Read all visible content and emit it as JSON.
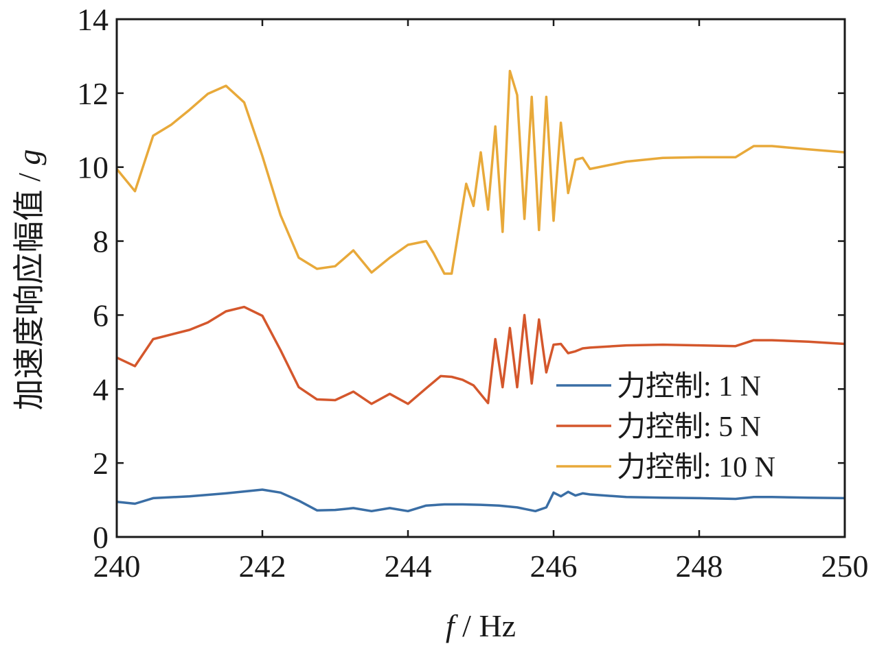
{
  "chart_data": {
    "type": "line",
    "xlabel": {
      "var": "f",
      "rest": " / Hz"
    },
    "ylabel": {
      "text": "加速度响应幅值 / ",
      "unit": "g"
    },
    "xlim": [
      240,
      250
    ],
    "ylim": [
      0,
      14
    ],
    "xticks": [
      240,
      242,
      244,
      246,
      248,
      250
    ],
    "yticks": [
      0,
      2,
      4,
      6,
      8,
      10,
      12,
      14
    ],
    "grid": false,
    "legend_position": "bottom-right",
    "series": [
      {
        "name": "力控制: 1 N",
        "color": "#3a6ea5",
        "x": [
          240,
          240.25,
          240.5,
          241,
          241.5,
          242,
          242.25,
          242.5,
          242.75,
          243,
          243.25,
          243.5,
          243.75,
          244,
          244.25,
          244.5,
          244.75,
          245,
          245.25,
          245.5,
          245.75,
          245.9,
          246,
          246.1,
          246.2,
          246.3,
          246.4,
          246.5,
          247,
          247.5,
          248,
          248.5,
          248.75,
          249,
          249.5,
          250
        ],
        "y": [
          0.95,
          0.9,
          1.05,
          1.1,
          1.18,
          1.28,
          1.2,
          0.98,
          0.72,
          0.73,
          0.78,
          0.7,
          0.78,
          0.7,
          0.85,
          0.88,
          0.88,
          0.87,
          0.85,
          0.8,
          0.7,
          0.8,
          1.2,
          1.1,
          1.22,
          1.12,
          1.18,
          1.15,
          1.08,
          1.06,
          1.05,
          1.03,
          1.08,
          1.08,
          1.06,
          1.05
        ]
      },
      {
        "name": "力控制: 5 N",
        "color": "#d4572c",
        "x": [
          240,
          240.25,
          240.5,
          241,
          241.25,
          241.5,
          241.75,
          242,
          242.25,
          242.5,
          242.75,
          243,
          243.25,
          243.5,
          243.75,
          244,
          244.25,
          244.45,
          244.6,
          244.75,
          244.9,
          245.1,
          245.2,
          245.3,
          245.4,
          245.5,
          245.6,
          245.7,
          245.8,
          245.9,
          246,
          246.1,
          246.2,
          246.3,
          246.4,
          246.5,
          247,
          247.5,
          248,
          248.5,
          248.75,
          249,
          249.5,
          250
        ],
        "y": [
          4.85,
          4.62,
          5.35,
          5.6,
          5.8,
          6.1,
          6.22,
          5.98,
          5.05,
          4.05,
          3.72,
          3.7,
          3.93,
          3.6,
          3.87,
          3.6,
          4.02,
          4.35,
          4.33,
          4.25,
          4.1,
          3.62,
          5.35,
          4.05,
          5.65,
          4.05,
          6.0,
          4.15,
          5.88,
          4.45,
          5.2,
          5.22,
          4.97,
          5.02,
          5.1,
          5.12,
          5.18,
          5.2,
          5.18,
          5.16,
          5.32,
          5.32,
          5.28,
          5.22
        ]
      },
      {
        "name": "力控制: 10 N",
        "color": "#e8a93a",
        "x": [
          240,
          240.25,
          240.5,
          240.75,
          241,
          241.25,
          241.5,
          241.75,
          242,
          242.25,
          242.5,
          242.75,
          243,
          243.25,
          243.5,
          243.75,
          244,
          244.25,
          244.35,
          244.5,
          244.6,
          244.8,
          244.9,
          245,
          245.1,
          245.2,
          245.3,
          245.4,
          245.5,
          245.6,
          245.7,
          245.8,
          245.9,
          246,
          246.1,
          246.2,
          246.3,
          246.4,
          246.5,
          247,
          247.5,
          248,
          248.5,
          248.75,
          249,
          249.5,
          250
        ],
        "y": [
          9.95,
          9.35,
          10.85,
          11.15,
          11.55,
          11.98,
          12.2,
          11.75,
          10.3,
          8.7,
          7.55,
          7.25,
          7.32,
          7.75,
          7.15,
          7.55,
          7.9,
          8.0,
          7.68,
          7.12,
          7.12,
          9.55,
          8.95,
          10.4,
          8.85,
          11.1,
          8.25,
          12.6,
          11.95,
          8.6,
          11.9,
          8.3,
          11.9,
          8.55,
          11.2,
          9.3,
          10.2,
          10.25,
          9.95,
          10.15,
          10.25,
          10.27,
          10.27,
          10.57,
          10.57,
          10.48,
          10.4
        ]
      }
    ]
  }
}
